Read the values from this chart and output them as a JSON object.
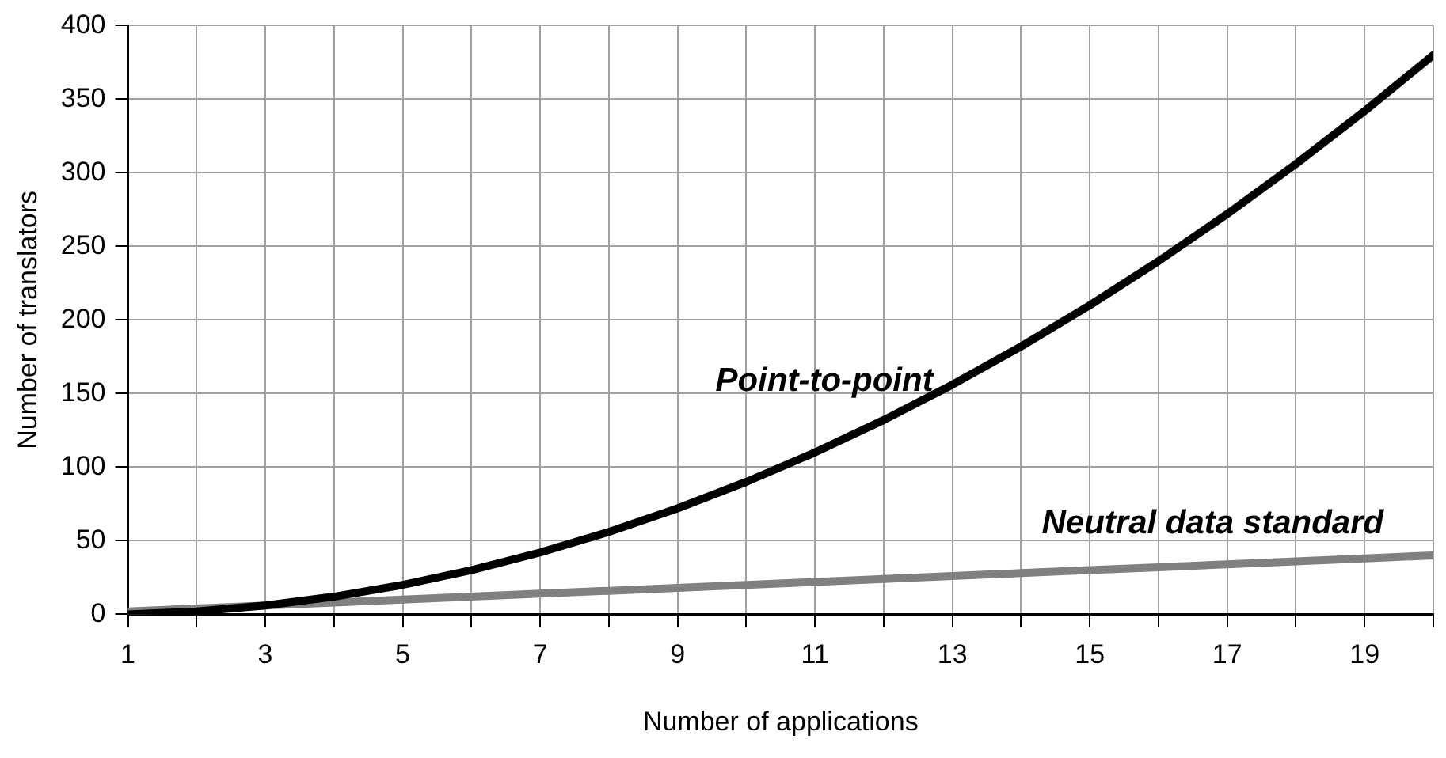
{
  "chart_data": {
    "type": "line",
    "xlabel": "Number of applications",
    "ylabel": "Number of translators",
    "x": [
      1,
      2,
      3,
      4,
      5,
      6,
      7,
      8,
      9,
      10,
      11,
      12,
      13,
      14,
      15,
      16,
      17,
      18,
      19,
      20
    ],
    "series": [
      {
        "name": "Point-to-point",
        "color": "#000000",
        "values": [
          0,
          2,
          6,
          12,
          20,
          30,
          42,
          56,
          72,
          90,
          110,
          132,
          156,
          182,
          210,
          240,
          272,
          306,
          342,
          380
        ]
      },
      {
        "name": "Neutral data standard",
        "color": "#808080",
        "values": [
          2,
          4,
          6,
          8,
          10,
          12,
          14,
          16,
          18,
          20,
          22,
          24,
          26,
          28,
          30,
          32,
          34,
          36,
          38,
          40
        ]
      }
    ],
    "xlim": [
      1,
      20
    ],
    "xticks": [
      1,
      {
        "value": 2,
        "label": null
      },
      3,
      {
        "value": 4,
        "label": null
      },
      5,
      {
        "value": 6,
        "label": null
      },
      7,
      {
        "value": 8,
        "label": null
      },
      9,
      {
        "value": 10,
        "label": null
      },
      11,
      {
        "value": 12,
        "label": null
      },
      13,
      {
        "value": 14,
        "label": null
      },
      15,
      {
        "value": 16,
        "label": null
      },
      17,
      {
        "value": 18,
        "label": null
      },
      19,
      {
        "value": 20,
        "label": null
      }
    ],
    "ylim": [
      0,
      400
    ],
    "yticks": [
      0,
      50,
      100,
      150,
      200,
      250,
      300,
      350,
      400
    ],
    "grid": true,
    "legend": false,
    "marker": "none",
    "line_style": "solid"
  }
}
